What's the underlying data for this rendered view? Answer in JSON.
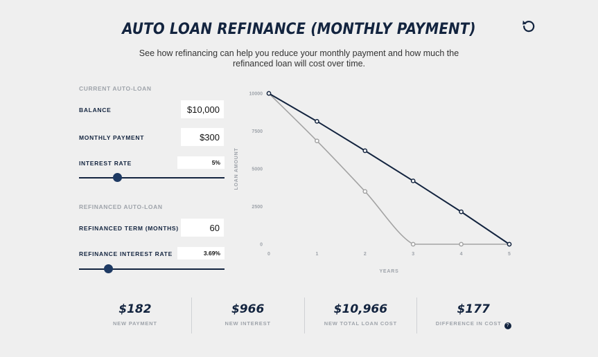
{
  "header": {
    "title": "AUTO LOAN REFINANCE (MONTHLY PAYMENT)",
    "subtitle": "See how refinancing can help you reduce your monthly payment and how much the refinanced loan will cost over time."
  },
  "reset_icon": "rotate-ccw-icon",
  "current": {
    "section_label": "CURRENT AUTO-LOAN",
    "balance_label": "BALANCE",
    "balance_value": "$10,000",
    "payment_label": "MONTHLY PAYMENT",
    "payment_value": "$300",
    "rate_label": "INTEREST RATE",
    "rate_value": "5%",
    "rate_slider_fraction": 0.26
  },
  "refinanced": {
    "section_label": "REFINANCED AUTO-LOAN",
    "term_label": "REFINANCED TERM (MONTHS)",
    "term_value": "60",
    "rate_label": "REFINANCE INTEREST RATE",
    "rate_value": "3.69%",
    "rate_slider_fraction": 0.2
  },
  "colors": {
    "navy": "#13243f",
    "gray_line": "#a3a3a3",
    "background": "#efefef"
  },
  "chart_data": {
    "type": "line",
    "xlabel": "YEARS",
    "ylabel": "LOAN AMOUNT",
    "x": [
      0,
      1,
      2,
      3,
      4,
      5
    ],
    "xlim": [
      0,
      5
    ],
    "ylim": [
      0,
      10000
    ],
    "yticks": [
      0,
      2500,
      5000,
      7500,
      10000
    ],
    "grid": false,
    "series": [
      {
        "color": "#13243f",
        "values": [
          10000,
          8150,
          6200,
          4200,
          2150,
          0
        ]
      },
      {
        "color": "#a3a3a3",
        "values": [
          10000,
          6850,
          3500,
          0,
          0,
          0
        ]
      }
    ]
  },
  "stats": [
    {
      "value": "$182",
      "label": "NEW PAYMENT"
    },
    {
      "value": "$966",
      "label": "NEW INTEREST"
    },
    {
      "value": "$10,966",
      "label": "NEW TOTAL LOAN COST"
    },
    {
      "value": "$177",
      "label": "DIFFERENCE IN COST",
      "help": "?"
    }
  ]
}
